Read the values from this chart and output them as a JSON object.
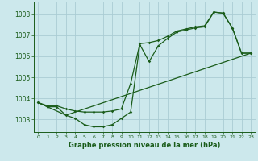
{
  "xlabel": "Graphe pression niveau de la mer (hPa)",
  "bg_color": "#cce8ec",
  "grid_color": "#aaccd4",
  "line_color": "#1a5c1a",
  "ylim": [
    1002.4,
    1008.6
  ],
  "xlim": [
    -0.5,
    23.5
  ],
  "yticks": [
    1003,
    1004,
    1005,
    1006,
    1007,
    1008
  ],
  "xticks": [
    0,
    1,
    2,
    3,
    4,
    5,
    6,
    7,
    8,
    9,
    10,
    11,
    12,
    13,
    14,
    15,
    16,
    17,
    18,
    19,
    20,
    21,
    22,
    23
  ],
  "series1_x": [
    0,
    1,
    2,
    3,
    4,
    5,
    6,
    7,
    8,
    9,
    10,
    11,
    12,
    13,
    14,
    15,
    16,
    17,
    18,
    19,
    20,
    21,
    22,
    23
  ],
  "series1_y": [
    1003.8,
    1003.6,
    1003.6,
    1003.2,
    1003.05,
    1002.75,
    1002.65,
    1002.65,
    1002.75,
    1003.05,
    1003.35,
    1006.55,
    1005.75,
    1006.5,
    1006.85,
    1007.15,
    1007.25,
    1007.35,
    1007.4,
    1008.1,
    1008.05,
    1007.35,
    1006.15,
    1006.15
  ],
  "series2_x": [
    0,
    1,
    2,
    3,
    4,
    5,
    6,
    7,
    8,
    9,
    10,
    11,
    12,
    13,
    14,
    15,
    16,
    17,
    18,
    19,
    20,
    21,
    22,
    23
  ],
  "series2_y": [
    1003.8,
    1003.65,
    1003.65,
    1003.5,
    1003.4,
    1003.35,
    1003.35,
    1003.35,
    1003.4,
    1003.5,
    1004.7,
    1006.6,
    1006.65,
    1006.75,
    1006.95,
    1007.2,
    1007.3,
    1007.4,
    1007.45,
    1008.1,
    1008.05,
    1007.35,
    1006.15,
    1006.15
  ],
  "series3_x": [
    0,
    3,
    23
  ],
  "series3_y": [
    1003.8,
    1003.2,
    1006.15
  ]
}
